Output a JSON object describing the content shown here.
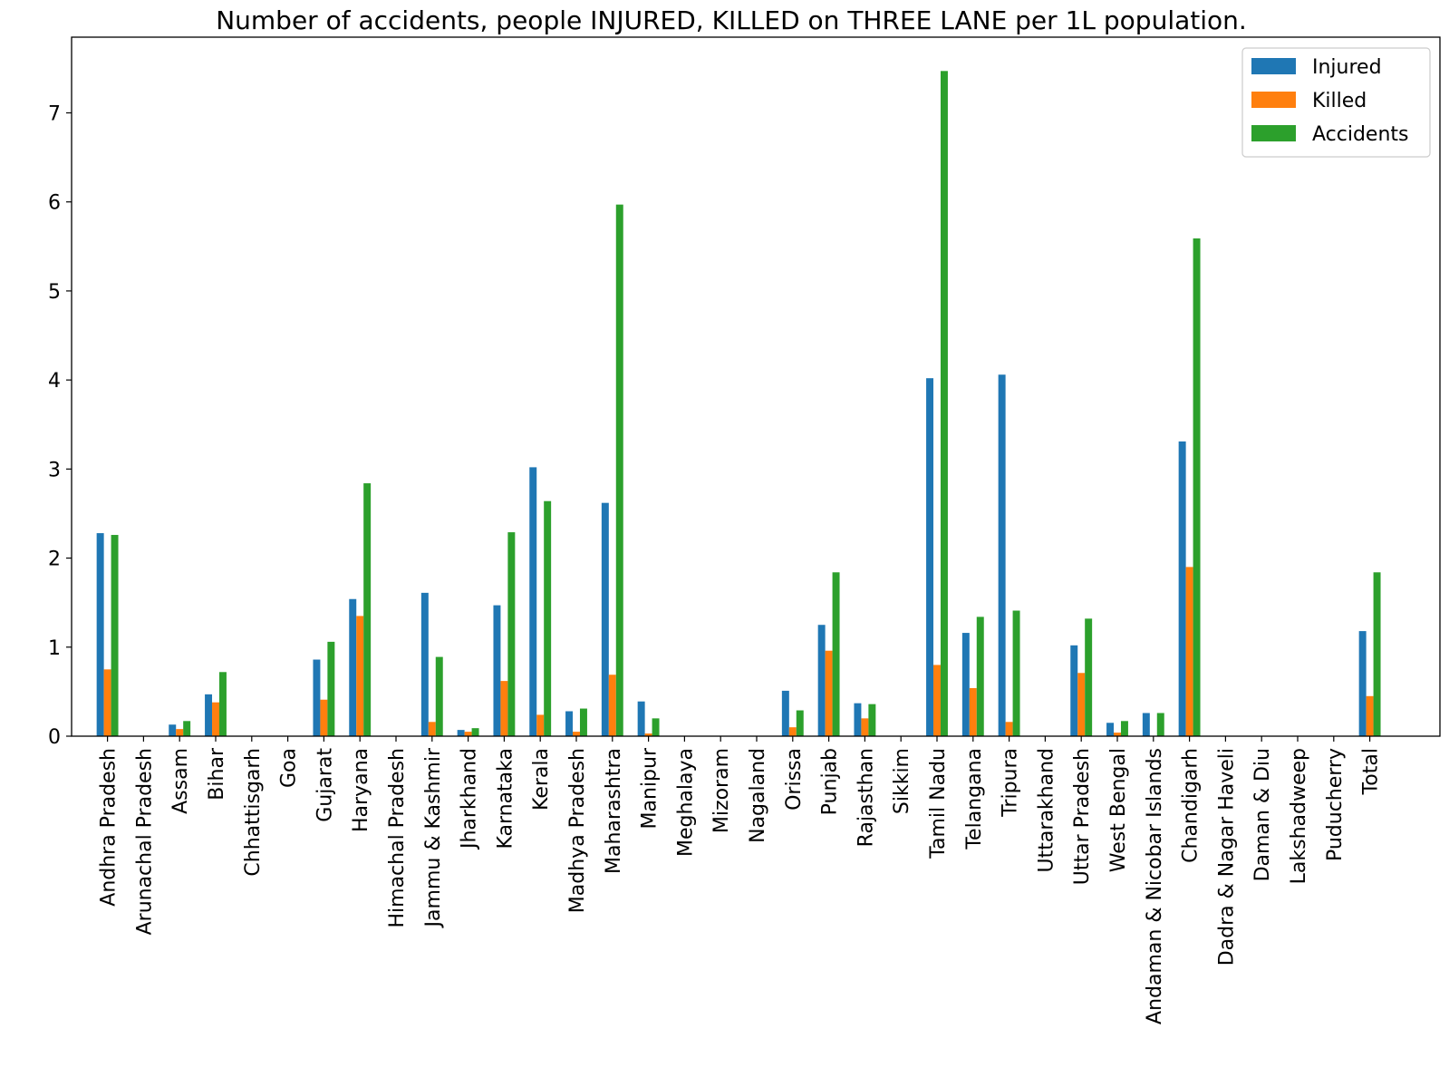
{
  "chart_data": {
    "type": "bar",
    "title": "Number of accidents, people INJURED, KILLED on THREE LANE per 1L population.",
    "xlabel": "",
    "ylabel": "",
    "ylim": [
      0,
      7.85
    ],
    "yticks": [
      0,
      1,
      2,
      3,
      4,
      5,
      6,
      7
    ],
    "grid": false,
    "legend_position": "top-right",
    "categories": [
      "Andhra Pradesh",
      "Arunachal Pradesh",
      "Assam",
      "Bihar",
      "Chhattisgarh",
      "Goa",
      "Gujarat",
      "Haryana",
      "Himachal Pradesh",
      "Jammu & Kashmir",
      "Jharkhand",
      "Karnataka",
      "Kerala",
      "Madhya Pradesh",
      "Maharashtra",
      "Manipur",
      "Meghalaya",
      "Mizoram",
      "Nagaland",
      "Orissa",
      "Punjab",
      "Rajasthan",
      "Sikkim",
      "Tamil Nadu",
      "Telangana",
      "Tripura",
      "Uttarakhand",
      "Uttar Pradesh",
      "West Bengal",
      "Andaman & Nicobar Islands",
      "Chandigarh",
      "Dadra & Nagar Haveli",
      "Daman & Diu",
      "Lakshadweep",
      "Puducherry",
      "Total"
    ],
    "series": [
      {
        "name": "Injured",
        "color": "#1f77b4",
        "values": [
          2.28,
          0,
          0.13,
          0.47,
          0,
          0,
          0.86,
          1.54,
          0,
          1.61,
          0.07,
          1.47,
          3.02,
          0.28,
          2.62,
          0.39,
          0,
          0,
          0,
          0.51,
          1.25,
          0.37,
          0,
          4.02,
          1.16,
          4.06,
          0,
          1.02,
          0.15,
          0.26,
          3.31,
          0,
          0,
          0,
          0,
          1.18
        ]
      },
      {
        "name": "Killed",
        "color": "#ff7f0e",
        "values": [
          0.75,
          0,
          0.08,
          0.38,
          0,
          0,
          0.41,
          1.35,
          0,
          0.16,
          0.05,
          0.62,
          0.24,
          0.05,
          0.69,
          0.03,
          0,
          0,
          0,
          0.1,
          0.96,
          0.2,
          0,
          0.8,
          0.54,
          0.16,
          0,
          0.71,
          0.04,
          0,
          1.9,
          0,
          0,
          0,
          0,
          0.45
        ]
      },
      {
        "name": "Accidents",
        "color": "#2ca02c",
        "values": [
          2.26,
          0,
          0.17,
          0.72,
          0,
          0,
          1.06,
          2.84,
          0,
          0.89,
          0.09,
          2.29,
          2.64,
          0.31,
          5.97,
          0.2,
          0,
          0,
          0,
          0.29,
          1.84,
          0.36,
          0,
          7.47,
          1.34,
          1.41,
          0,
          1.32,
          0.17,
          0.26,
          5.59,
          0,
          0,
          0,
          0,
          1.84
        ]
      }
    ]
  }
}
